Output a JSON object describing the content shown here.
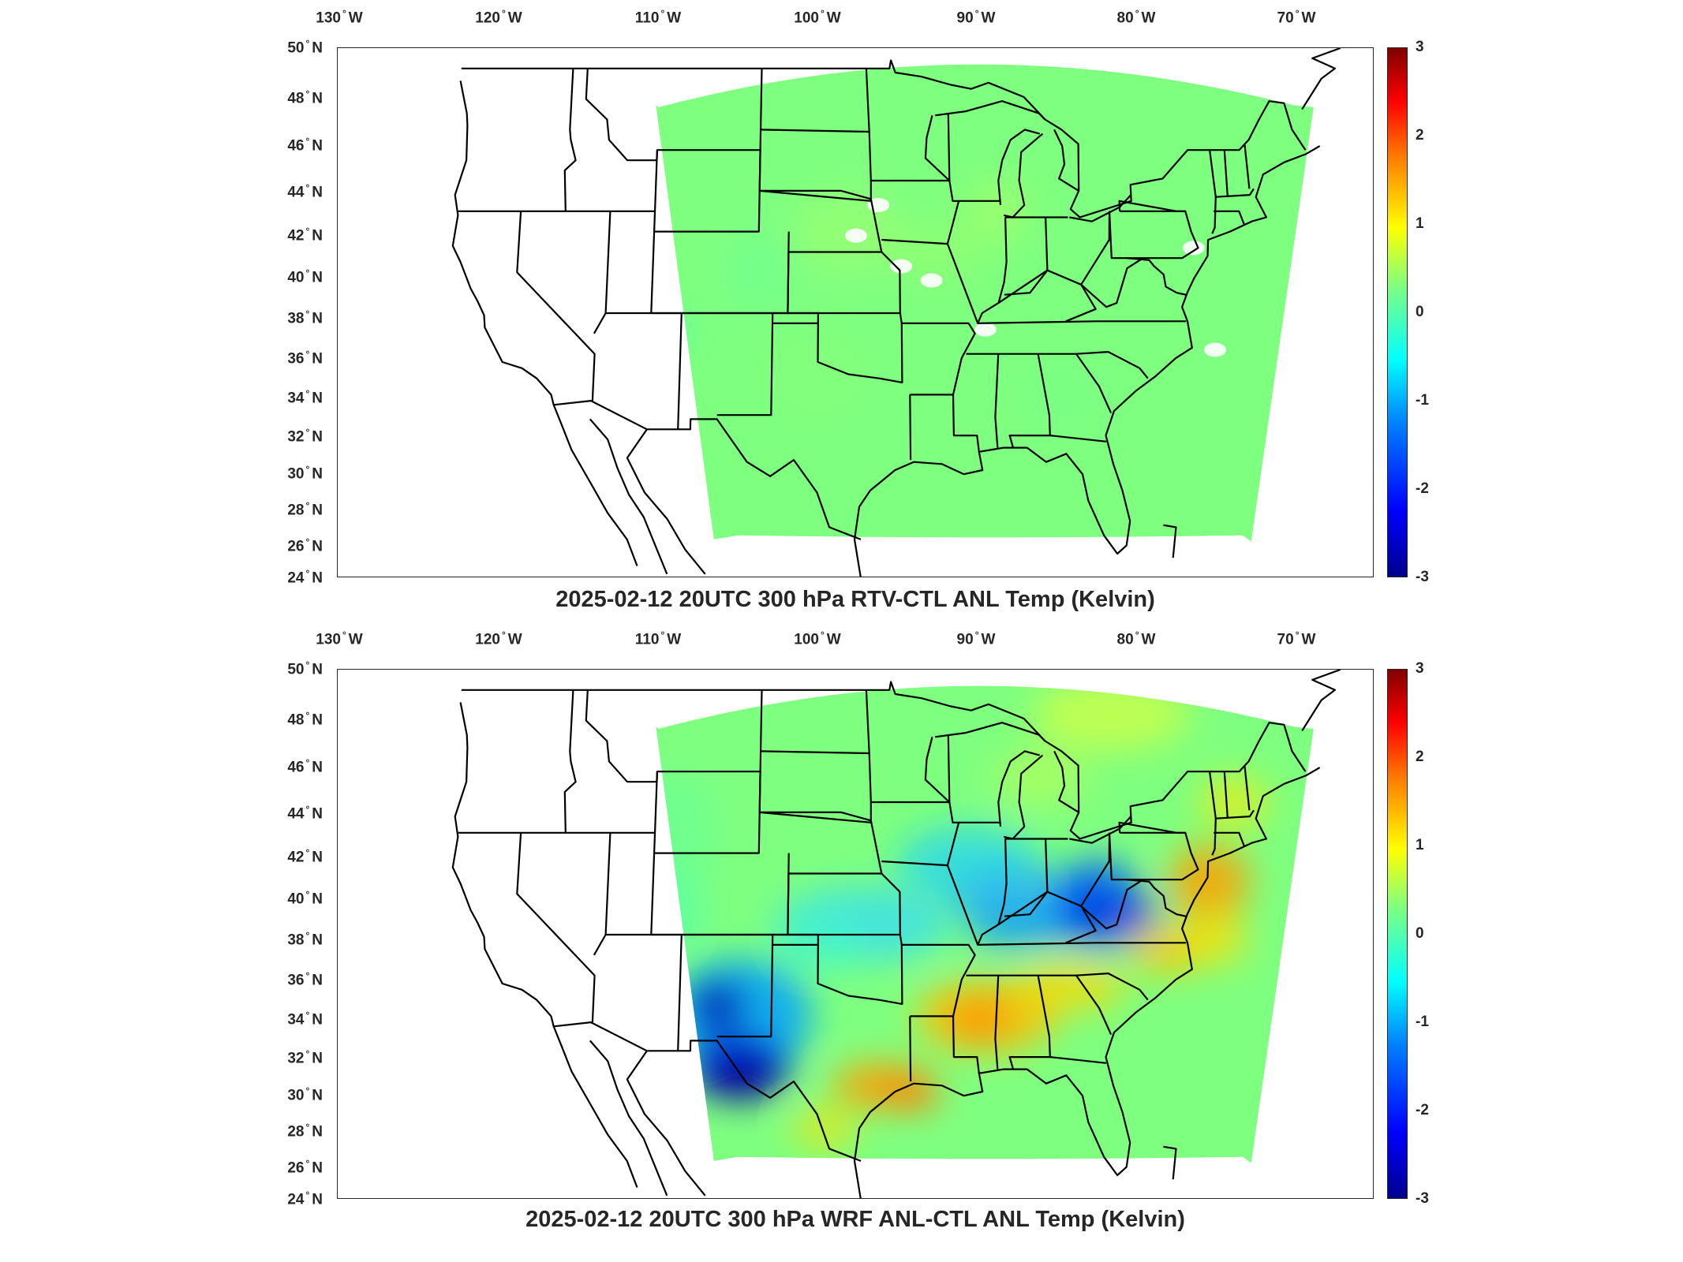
{
  "panels": [
    {
      "title": "2025-02-12 20UTC 300 hPa RTV-CTL ANL Temp (Kelvin)",
      "variant": "rtv"
    },
    {
      "title": "2025-02-12 20UTC 300 hPa WRF ANL-CTL ANL Temp (Kelvin)",
      "variant": "wrf"
    }
  ],
  "map": {
    "lon_labels": [
      {
        "num": "130",
        "hemi": "W"
      },
      {
        "num": "120",
        "hemi": "W"
      },
      {
        "num": "110",
        "hemi": "W"
      },
      {
        "num": "100",
        "hemi": "W"
      },
      {
        "num": "90",
        "hemi": "W"
      },
      {
        "num": "80",
        "hemi": "W"
      },
      {
        "num": "70",
        "hemi": "W"
      }
    ],
    "lat_labels": [
      {
        "num": "50",
        "hemi": "N"
      },
      {
        "num": "48",
        "hemi": "N"
      },
      {
        "num": "46",
        "hemi": "N"
      },
      {
        "num": "44",
        "hemi": "N"
      },
      {
        "num": "42",
        "hemi": "N"
      },
      {
        "num": "40",
        "hemi": "N"
      },
      {
        "num": "38",
        "hemi": "N"
      },
      {
        "num": "36",
        "hemi": "N"
      },
      {
        "num": "34",
        "hemi": "N"
      },
      {
        "num": "32",
        "hemi": "N"
      },
      {
        "num": "30",
        "hemi": "N"
      },
      {
        "num": "28",
        "hemi": "N"
      },
      {
        "num": "26",
        "hemi": "N"
      },
      {
        "num": "24",
        "hemi": "N"
      }
    ],
    "colorbar": {
      "colormap": "jet",
      "range": [
        -3,
        3
      ],
      "ticks": [
        "3",
        "2",
        "1",
        "0",
        "-1",
        "-2",
        "-3"
      ]
    },
    "colors": {
      "background_anomaly": "#7fff80",
      "cold_anomaly": "#0000a0",
      "warm_anomaly": "#ff9000",
      "boundaries": "#000000"
    }
  }
}
